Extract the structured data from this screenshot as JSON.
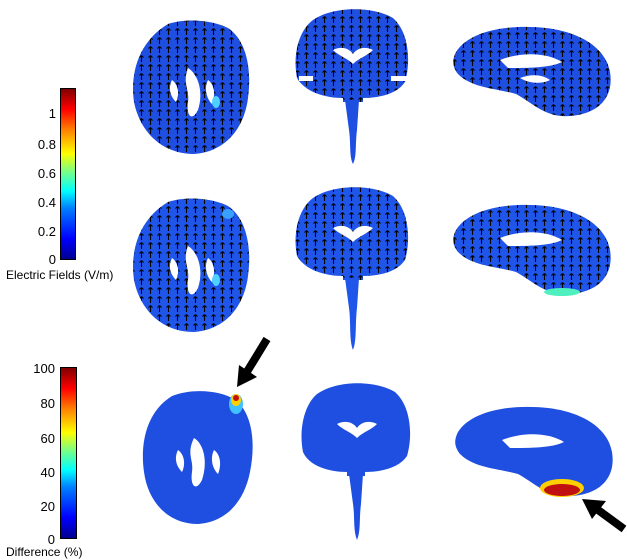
{
  "colorbars": [
    {
      "title": "Electric Fields (V/m)",
      "ticks": [
        "0",
        "0.2",
        "0.4",
        "0.6",
        "0.8",
        "1"
      ]
    },
    {
      "title": "Difference (%)",
      "ticks": [
        "0",
        "20",
        "40",
        "60",
        "80",
        "100"
      ]
    }
  ],
  "panels": [
    {
      "view": "axial",
      "row": "electric-field-1"
    },
    {
      "view": "coronal",
      "row": "electric-field-1"
    },
    {
      "view": "sagittal",
      "row": "electric-field-1"
    },
    {
      "view": "axial",
      "row": "electric-field-2"
    },
    {
      "view": "coronal",
      "row": "electric-field-2"
    },
    {
      "view": "sagittal",
      "row": "electric-field-2"
    },
    {
      "view": "axial",
      "row": "difference"
    },
    {
      "view": "coronal",
      "row": "difference"
    },
    {
      "view": "sagittal",
      "row": "difference"
    }
  ],
  "colors": {
    "field_blue": "#1f4fe0",
    "hotspot_red": "#c01010",
    "arrow_black": "#000000"
  }
}
